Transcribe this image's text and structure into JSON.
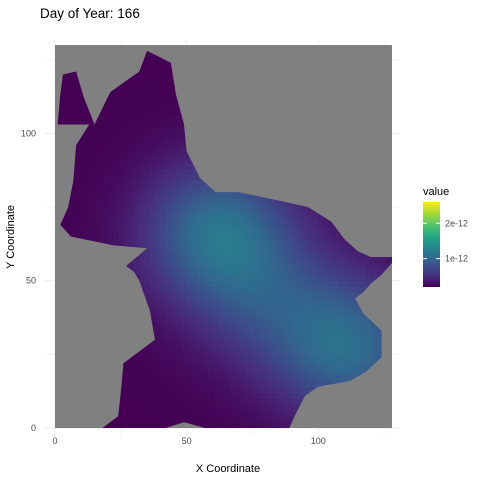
{
  "chart_data": {
    "type": "heatmap",
    "title": "Day of Year: 166",
    "xlabel": "X Coordinate",
    "ylabel": "Y Coordinate",
    "xlim": [
      0,
      128
    ],
    "ylim": [
      0,
      130
    ],
    "x_ticks": [
      0,
      50,
      100
    ],
    "y_ticks": [
      0,
      50,
      100
    ],
    "x_tick_labels": [
      "0",
      "50",
      "100"
    ],
    "y_tick_labels": [
      "0",
      "50",
      "100"
    ],
    "grid": true,
    "panel_background": "#808080",
    "colormap": "viridis",
    "legend": {
      "title": "value",
      "position": "right",
      "range": [
        2e-13,
        2.6e-12
      ],
      "breaks": [
        1e-12,
        2e-12
      ],
      "labels": [
        "1e-12",
        "2e-12"
      ]
    },
    "region_outline": [
      [
        18,
        0
      ],
      [
        24,
        4
      ],
      [
        25,
        12
      ],
      [
        26,
        22
      ],
      [
        38,
        30
      ],
      [
        36,
        40
      ],
      [
        32,
        50
      ],
      [
        30,
        53
      ],
      [
        27,
        55
      ],
      [
        35,
        61
      ],
      [
        22,
        62
      ],
      [
        6,
        65
      ],
      [
        2,
        69
      ],
      [
        5,
        75
      ],
      [
        7,
        84
      ],
      [
        8,
        96
      ],
      [
        13,
        103
      ],
      [
        1,
        103
      ],
      [
        2,
        113
      ],
      [
        3,
        120
      ],
      [
        8,
        121
      ],
      [
        11,
        112
      ],
      [
        15,
        103
      ],
      [
        21,
        114
      ],
      [
        32,
        121
      ],
      [
        35,
        128
      ],
      [
        44,
        124
      ],
      [
        46,
        113
      ],
      [
        49,
        103
      ],
      [
        50,
        94
      ],
      [
        55,
        85
      ],
      [
        61,
        80
      ],
      [
        70,
        80
      ],
      [
        86,
        77
      ],
      [
        96,
        75
      ],
      [
        105,
        70
      ],
      [
        110,
        64
      ],
      [
        115,
        60
      ],
      [
        120,
        58
      ],
      [
        128,
        58
      ],
      [
        128,
        56
      ],
      [
        124,
        52
      ],
      [
        120,
        49
      ],
      [
        117,
        46
      ],
      [
        114,
        44
      ],
      [
        117,
        39
      ],
      [
        124,
        33
      ],
      [
        124,
        24
      ],
      [
        118,
        19
      ],
      [
        112,
        16
      ],
      [
        100,
        14
      ],
      [
        95,
        11
      ],
      [
        91,
        4
      ],
      [
        89,
        0
      ],
      [
        57,
        0
      ],
      [
        49,
        2
      ],
      [
        42,
        0
      ]
    ],
    "value_field": {
      "base": 2e-13,
      "peaks": [
        {
          "x": 62,
          "y": 66,
          "value": 9e-13
        },
        {
          "x": 112,
          "y": 27,
          "value": 8e-13
        },
        {
          "x": 82,
          "y": 42,
          "value": 4e-13
        }
      ]
    }
  },
  "colors": {
    "viridis_stops": [
      "#440154",
      "#482878",
      "#3e4989",
      "#31688e",
      "#26828e",
      "#1f9e89",
      "#35b779",
      "#6ece58",
      "#b5de2b",
      "#fde725"
    ],
    "grid_line": "#ebebeb",
    "panel": "#808080"
  }
}
